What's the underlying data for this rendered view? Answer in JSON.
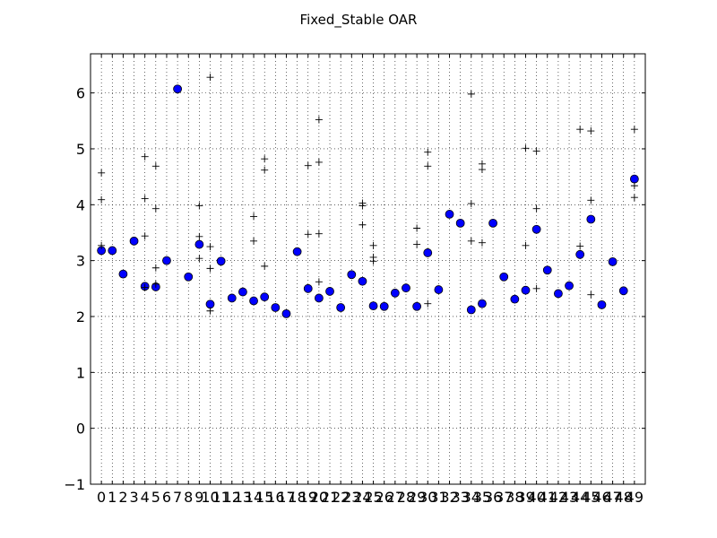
{
  "chart_data": {
    "type": "scatter",
    "title": "Fixed_Stable OAR",
    "xlabel": "",
    "ylabel": "",
    "xlim": [
      -1,
      50
    ],
    "ylim": [
      -1,
      6.7
    ],
    "grid": true,
    "x_ticks": [
      0,
      1,
      2,
      3,
      4,
      5,
      6,
      7,
      8,
      9,
      10,
      11,
      12,
      13,
      14,
      15,
      16,
      17,
      18,
      19,
      20,
      21,
      22,
      23,
      24,
      25,
      26,
      27,
      28,
      29,
      30,
      31,
      32,
      33,
      34,
      35,
      36,
      37,
      38,
      39,
      40,
      41,
      42,
      43,
      44,
      45,
      46,
      47,
      48,
      49
    ],
    "y_ticks": [
      -1,
      0,
      1,
      2,
      3,
      4,
      5,
      6
    ],
    "y_tick_labels": [
      "−1",
      "0",
      "1",
      "2",
      "3",
      "4",
      "5",
      "6"
    ],
    "series": [
      {
        "marker": "circle",
        "color": "#0000ff",
        "x": [
          0,
          1,
          2,
          3,
          4,
          5,
          6,
          7,
          8,
          9,
          10,
          11,
          12,
          13,
          14,
          15,
          16,
          17,
          18,
          19,
          20,
          21,
          22,
          23,
          24,
          25,
          26,
          27,
          28,
          29,
          30,
          31,
          32,
          33,
          34,
          35,
          36,
          37,
          38,
          39,
          40,
          41,
          42,
          43,
          44,
          45,
          46,
          47,
          48,
          49
        ],
        "y": [
          3.18,
          3.18,
          2.76,
          3.35,
          2.54,
          2.53,
          3.0,
          6.07,
          2.71,
          3.29,
          2.22,
          2.99,
          2.33,
          2.44,
          2.28,
          2.35,
          2.16,
          2.05,
          3.16,
          2.5,
          2.33,
          2.45,
          2.16,
          2.75,
          2.63,
          2.19,
          2.18,
          2.42,
          2.51,
          2.18,
          3.14,
          2.48,
          3.83,
          3.67,
          2.12,
          2.23,
          3.67,
          2.71,
          2.31,
          2.47,
          3.56,
          2.83,
          2.41,
          2.55,
          3.11,
          3.74,
          2.21,
          2.98,
          2.46,
          4.46
        ]
      },
      {
        "marker": "plus",
        "color": "#000000",
        "x": [
          0,
          0,
          0,
          4,
          4,
          4,
          4,
          5,
          5,
          5,
          5,
          9,
          9,
          9,
          10,
          10,
          10,
          10,
          14,
          14,
          15,
          15,
          15,
          19,
          19,
          20,
          20,
          20,
          20,
          24,
          24,
          24,
          25,
          25,
          25,
          29,
          29,
          30,
          30,
          30,
          34,
          34,
          34,
          35,
          35,
          35,
          39,
          39,
          40,
          40,
          40,
          44,
          44,
          45,
          45,
          45,
          49,
          49,
          49
        ],
        "y": [
          4.57,
          4.09,
          3.27,
          4.86,
          4.11,
          3.44,
          2.52,
          4.69,
          3.93,
          2.87,
          2.58,
          3.98,
          3.43,
          3.04,
          6.28,
          3.25,
          2.86,
          2.1,
          3.79,
          3.35,
          4.82,
          4.62,
          2.9,
          4.7,
          3.47,
          5.52,
          4.76,
          3.48,
          2.62,
          4.03,
          3.98,
          3.64,
          3.27,
          3.06,
          2.99,
          3.58,
          3.29,
          4.94,
          4.69,
          2.23,
          5.98,
          4.02,
          3.35,
          4.73,
          4.63,
          3.32,
          5.01,
          3.27,
          4.96,
          3.93,
          2.5,
          5.35,
          3.26,
          5.32,
          4.08,
          2.39,
          5.35,
          4.34,
          4.13
        ]
      }
    ]
  }
}
